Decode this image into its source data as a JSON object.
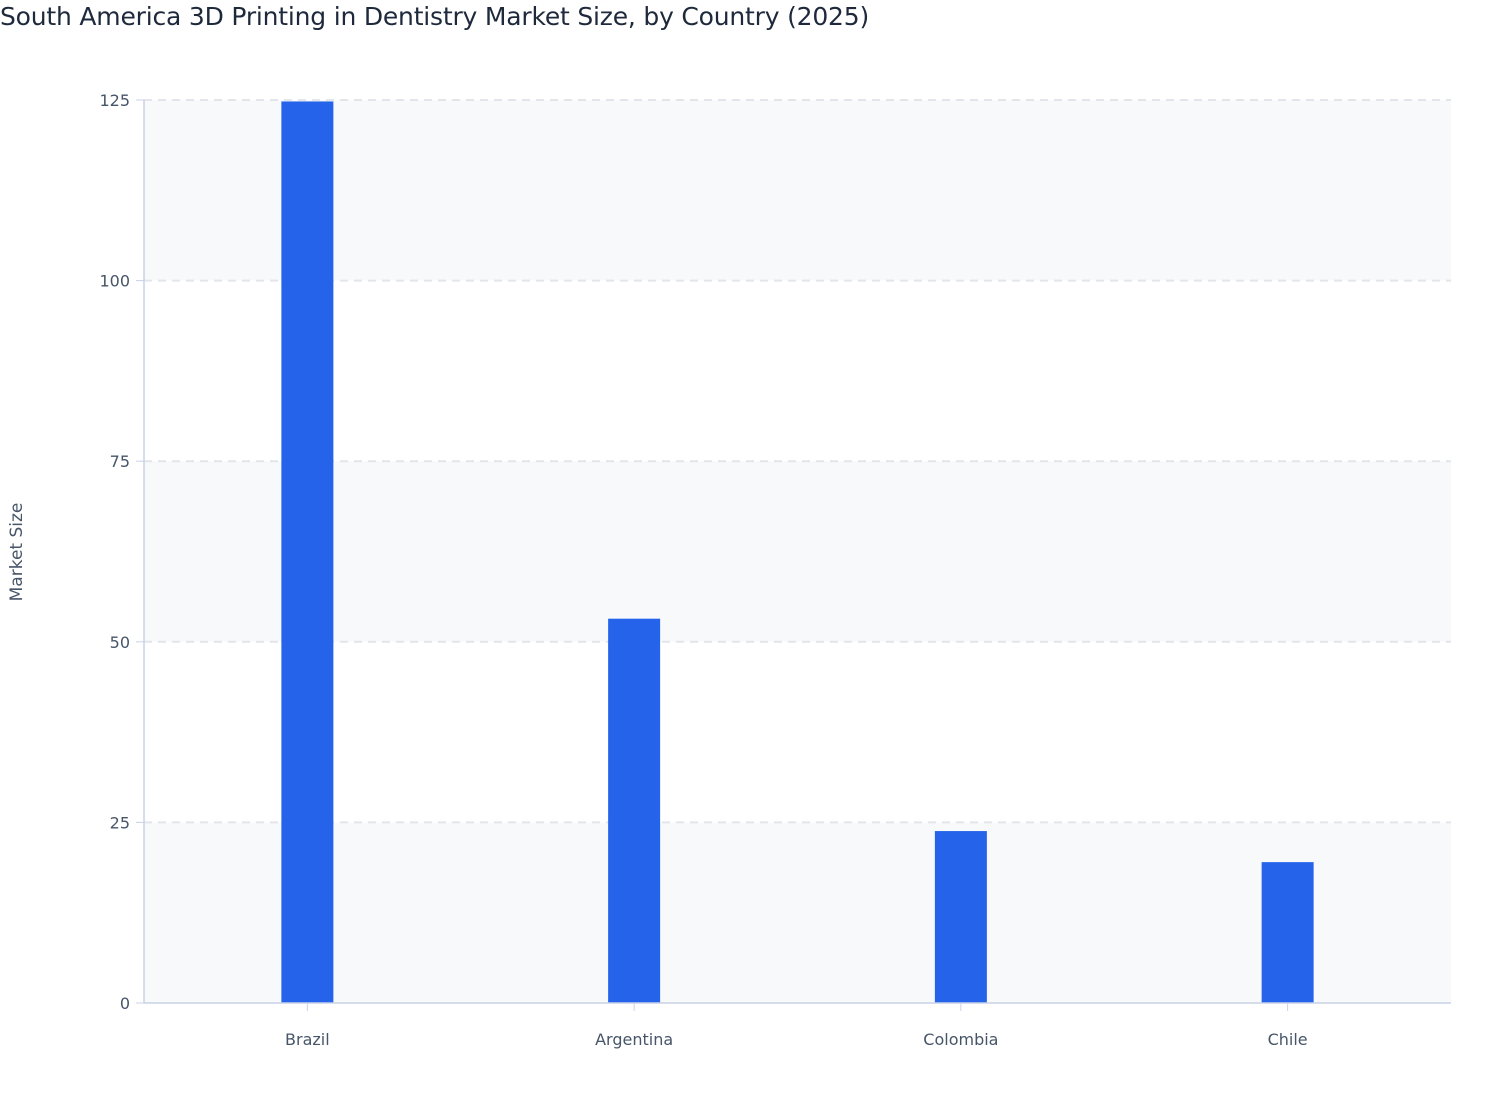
{
  "chart_data": {
    "type": "bar",
    "title": "South America 3D Printing in Dentistry Market Size, by Country (2025)",
    "xlabel": "",
    "ylabel": "Market Size",
    "categories": [
      "Brazil",
      "Argentina",
      "Colombia",
      "Chile"
    ],
    "values": [
      124.8,
      53.2,
      23.8,
      19.5
    ],
    "ylim": [
      0,
      125
    ],
    "yticks": [
      0,
      25,
      50,
      75,
      100,
      125
    ],
    "grid": true,
    "legend": "none",
    "colors": {
      "bar": "#2563eb",
      "band": "#f8f9fb",
      "grid": "#e2e5ea",
      "axis": "#c7d2e8"
    }
  }
}
